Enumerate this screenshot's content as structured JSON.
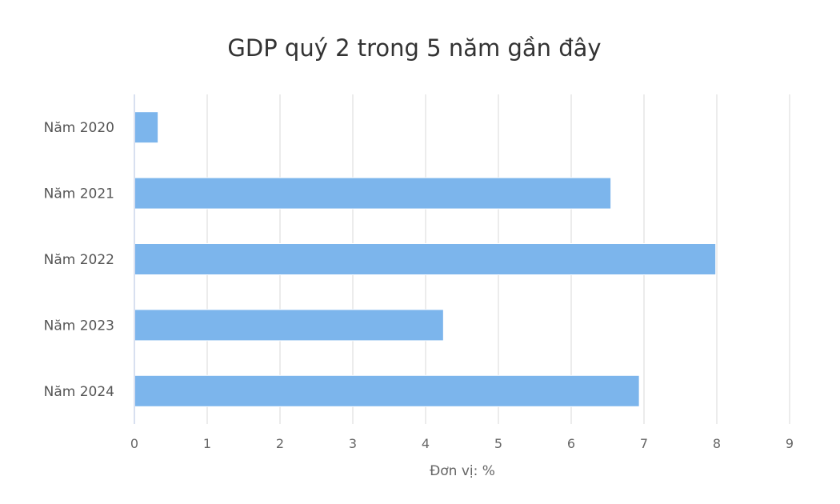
{
  "chart_data": {
    "type": "bar",
    "orientation": "horizontal",
    "title": "GDP quý 2 trong 5 năm gần đây",
    "xlabel": "Đơn vị: %",
    "ylabel": "",
    "categories": [
      "Năm 2020",
      "Năm 2021",
      "Năm 2022",
      "Năm 2023",
      "Năm 2024"
    ],
    "values": [
      0.32,
      6.54,
      7.98,
      4.24,
      6.93
    ],
    "xlim": [
      0,
      9
    ],
    "xticks": [
      0,
      1,
      2,
      3,
      4,
      5,
      6,
      7,
      8,
      9
    ],
    "grid": true,
    "legend": "none",
    "bar_color": "#7cb5ec"
  }
}
